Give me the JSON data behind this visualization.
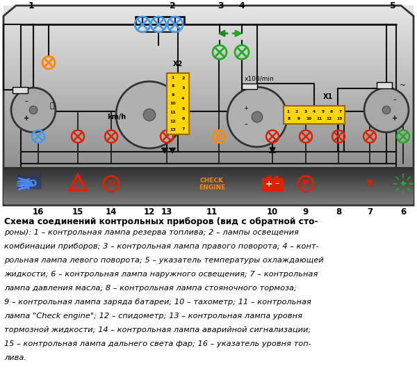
{
  "bg_color": "#ffffff",
  "panel_border_color": "#444444",
  "wire_color": "#111111",
  "blue": "#4499EE",
  "orange": "#FF8800",
  "red": "#DD2200",
  "green": "#22AA22",
  "dark_green": "#228822",
  "yellow": "#FFD700",
  "gray_gauge": "#aaaaaa",
  "description_title": "Схема соединений контрольных приборов (вид с обратной сто-",
  "description_lines": [
    "роны): 1 – контрольная лампа резерва топлива; 2 – лампы освещения",
    "комбинации приборов; 3 – контрольная лампа правого поворота; 4 – конт-",
    "рольная лампа левого поворота; 5 – указатель температуры охлаждающей",
    "жидкости; 6 – контрольная лампа наружного освещения; 7 – контрольная",
    "лампа давления масла; 8 – контрольная лампа стояночного тормоза;",
    "9 – контрольная лампа заряда батареи; 10 – тахометр; 11 – контрольная",
    "лампа \"Check engine\"; 12 – спидометр; 13 – контрольная лампа уровня",
    "тормозной жидкости; 14 – контрольная лампа аварийной сигнализации;",
    "15 – контрольная лампа дальнего света фар; 16 – указатель уровня топ-",
    "лива."
  ]
}
